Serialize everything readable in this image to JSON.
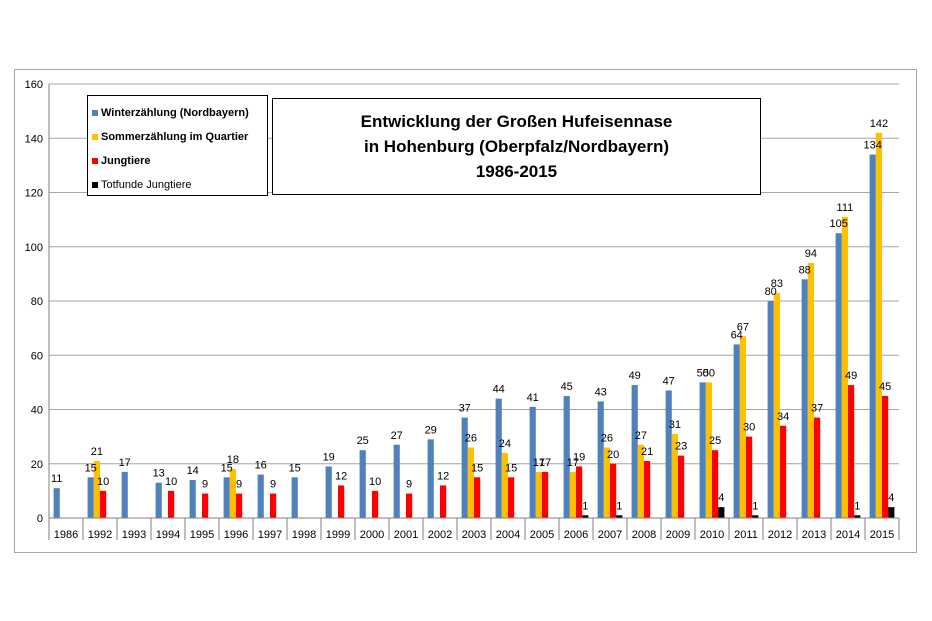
{
  "chart_data": {
    "type": "bar",
    "title_lines": [
      "Entwicklung  der Großen Hufeisennase",
      "in Hohenburg (Oberpfalz/Nordbayern)",
      "1986-2015"
    ],
    "categories": [
      "1986",
      "1992",
      "1993",
      "1994",
      "1995",
      "1996",
      "1997",
      "1998",
      "1999",
      "2000",
      "2001",
      "2002",
      "2003",
      "2004",
      "2005",
      "2006",
      "2007",
      "2008",
      "2009",
      "2010",
      "2011",
      "2012",
      "2013",
      "2014",
      "2015"
    ],
    "ylim": [
      0,
      160
    ],
    "yticks": [
      0,
      20,
      40,
      60,
      80,
      100,
      120,
      140,
      160
    ],
    "grid": true,
    "legend_position": "top-left",
    "series": [
      {
        "name": "Winterzählung (Nordbayern)",
        "color": "#4f81bd",
        "values": [
          11,
          15,
          17,
          13,
          14,
          15,
          16,
          15,
          19,
          25,
          27,
          29,
          37,
          44,
          41,
          45,
          43,
          49,
          47,
          50,
          64,
          80,
          88,
          105,
          134
        ]
      },
      {
        "name": "Sommerzählung im Quartier",
        "color": "#ffc000",
        "values": [
          null,
          21,
          null,
          null,
          null,
          18,
          null,
          null,
          null,
          null,
          null,
          null,
          26,
          24,
          17,
          17,
          26,
          27,
          31,
          50,
          67,
          83,
          94,
          111,
          142
        ]
      },
      {
        "name": "Jungtiere",
        "color": "#ff0000",
        "values": [
          null,
          10,
          null,
          10,
          9,
          9,
          9,
          null,
          12,
          10,
          9,
          12,
          15,
          15,
          17,
          19,
          20,
          21,
          23,
          25,
          30,
          34,
          37,
          49,
          45
        ]
      },
      {
        "name": "Totfunde Jungtiere",
        "color": "#000000",
        "values": [
          null,
          null,
          null,
          null,
          null,
          null,
          null,
          null,
          null,
          null,
          null,
          null,
          null,
          null,
          null,
          1,
          1,
          null,
          null,
          4,
          1,
          null,
          null,
          1,
          4
        ]
      }
    ]
  }
}
